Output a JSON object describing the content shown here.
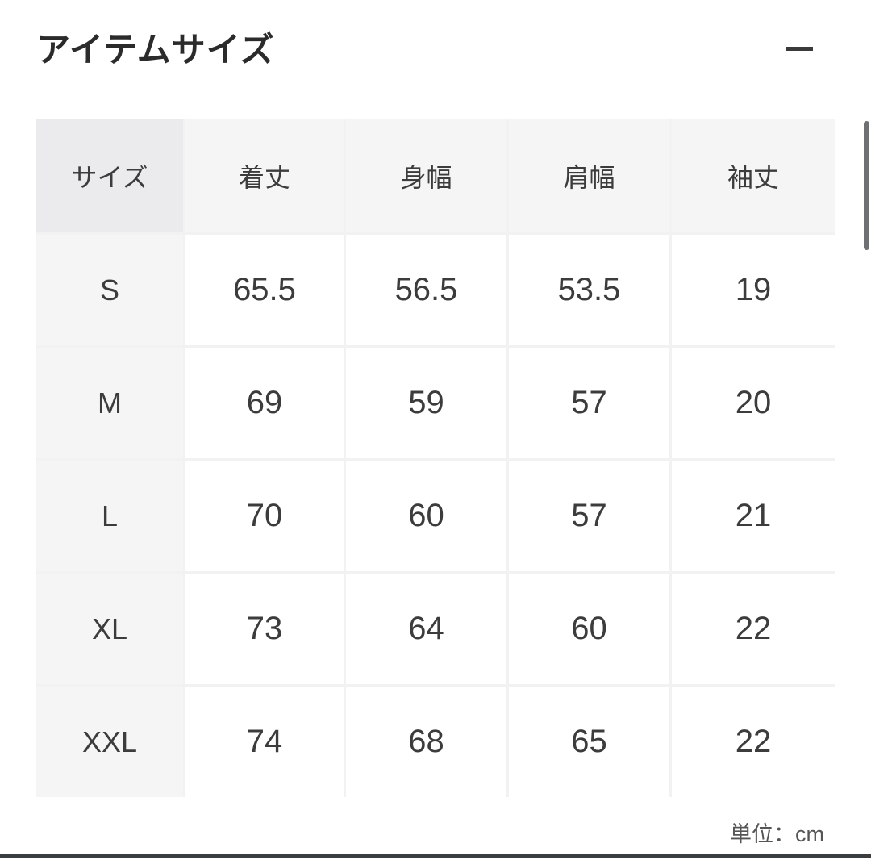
{
  "section": {
    "title": "アイテムサイズ",
    "unit_label": "単位：cm"
  },
  "table": {
    "headers": [
      "サイズ",
      "着丈",
      "身幅",
      "肩幅",
      "袖丈"
    ],
    "rows": [
      {
        "size": "S",
        "values": [
          "65.5",
          "56.5",
          "53.5",
          "19"
        ]
      },
      {
        "size": "M",
        "values": [
          "69",
          "59",
          "57",
          "20"
        ]
      },
      {
        "size": "L",
        "values": [
          "70",
          "60",
          "57",
          "21"
        ]
      },
      {
        "size": "XL",
        "values": [
          "73",
          "64",
          "60",
          "22"
        ]
      },
      {
        "size": "XXL",
        "values": [
          "74",
          "68",
          "65",
          "22"
        ]
      }
    ]
  },
  "colors": {
    "header_first_bg": "#ebebed",
    "header_bg": "#f5f5f6",
    "size_col_bg": "#f5f5f6",
    "value_bg": "#ffffff",
    "text": "#3c3c3c",
    "divider": "#3b3e41",
    "scrollbar": "#6e7073"
  }
}
